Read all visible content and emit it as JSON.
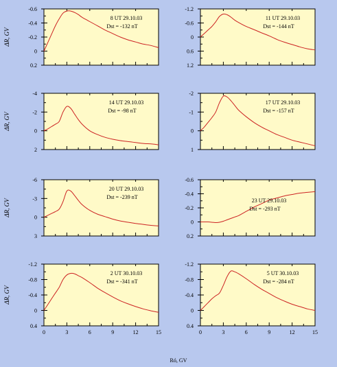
{
  "chart_data": {
    "type": "line",
    "xlabel": "Ró, GV",
    "ylabel": "ΔR, GV",
    "xlim": [
      0,
      15
    ],
    "xticks": [
      0,
      3,
      6,
      9,
      12,
      15
    ],
    "line_color": "#cc2222",
    "panel_bg": "#fffac8",
    "figure_bg": "#b8c8ee",
    "panels": [
      {
        "label": "8 UT 29.10.03",
        "dst": "Dst = -132 nT",
        "ylim": [
          0.2,
          -0.6
        ],
        "yticks": [
          {
            "v": -0.6,
            "t": "-0.6"
          },
          {
            "v": -0.4,
            "t": "-0.4"
          },
          {
            "v": -0.2,
            "t": "-0.2"
          },
          {
            "v": 0,
            "t": "0"
          },
          {
            "v": 0.2,
            "t": "0.2"
          }
        ],
        "x": [
          0,
          0.5,
          1,
          1.5,
          2,
          2.5,
          3,
          3.5,
          4,
          4.5,
          5,
          6,
          7,
          8,
          9,
          10,
          11,
          12,
          13,
          14,
          15
        ],
        "y": [
          0,
          -0.12,
          -0.24,
          -0.36,
          -0.46,
          -0.54,
          -0.57,
          -0.57,
          -0.55,
          -0.52,
          -0.48,
          -0.42,
          -0.36,
          -0.3,
          -0.25,
          -0.2,
          -0.16,
          -0.13,
          -0.1,
          -0.08,
          -0.05
        ]
      },
      {
        "label": "11 UT 29.10.03",
        "dst": "Dst = -144 nT",
        "ylim": [
          1.2,
          -1.2
        ],
        "yticks": [
          {
            "v": -1.2,
            "t": "-1.2"
          },
          {
            "v": -0.6,
            "t": "-0.6"
          },
          {
            "v": 0,
            "t": "0"
          },
          {
            "v": 0.6,
            "t": "0.6"
          },
          {
            "v": 1.2,
            "t": "1.2"
          }
        ],
        "x": [
          0,
          0.5,
          1,
          1.5,
          2,
          2.5,
          3,
          3.5,
          4,
          4.5,
          5,
          6,
          7,
          8,
          9,
          10,
          11,
          12,
          13,
          14,
          15
        ],
        "y": [
          0,
          -0.15,
          -0.3,
          -0.45,
          -0.65,
          -0.88,
          -0.98,
          -0.95,
          -0.85,
          -0.72,
          -0.62,
          -0.45,
          -0.32,
          -0.18,
          -0.05,
          0.1,
          0.22,
          0.32,
          0.42,
          0.5,
          0.55
        ]
      },
      {
        "label": "14 UT 29.10.03",
        "dst": "Dst = -98 nT",
        "ylim": [
          2,
          -4
        ],
        "yticks": [
          {
            "v": -4,
            "t": "-4"
          },
          {
            "v": -2,
            "t": "-2"
          },
          {
            "v": 0,
            "t": "0"
          },
          {
            "v": 2,
            "t": "2"
          }
        ],
        "x": [
          0,
          0.5,
          1,
          1.5,
          2,
          2.5,
          3,
          3.5,
          4,
          4.5,
          5,
          6,
          7,
          8,
          9,
          10,
          11,
          12,
          13,
          14,
          15
        ],
        "y": [
          0,
          -0.2,
          -0.45,
          -0.7,
          -1.0,
          -2.0,
          -2.6,
          -2.4,
          -1.8,
          -1.2,
          -0.7,
          0,
          0.4,
          0.7,
          0.9,
          1.05,
          1.15,
          1.25,
          1.35,
          1.4,
          1.5
        ]
      },
      {
        "label": "17 UT 29.10.03",
        "dst": "Dst = -157 nT",
        "ylim": [
          1,
          -2
        ],
        "yticks": [
          {
            "v": -2,
            "t": "-2"
          },
          {
            "v": -1,
            "t": "-1"
          },
          {
            "v": 0,
            "t": "0"
          },
          {
            "v": 1,
            "t": "1"
          }
        ],
        "x": [
          0,
          0.5,
          1,
          1.5,
          2,
          2.5,
          3,
          3.5,
          4,
          4.5,
          5,
          6,
          7,
          8,
          9,
          10,
          11,
          12,
          13,
          14,
          15
        ],
        "y": [
          0,
          -0.2,
          -0.45,
          -0.7,
          -1.0,
          -1.5,
          -1.85,
          -1.8,
          -1.6,
          -1.35,
          -1.1,
          -0.75,
          -0.45,
          -0.2,
          0,
          0.2,
          0.35,
          0.5,
          0.6,
          0.7,
          0.8
        ]
      },
      {
        "label": "20 UT 29.10.03",
        "dst": "Dst = -239 nT",
        "ylim": [
          3,
          -6
        ],
        "yticks": [
          {
            "v": -6,
            "t": "-6"
          },
          {
            "v": -3,
            "t": "-3"
          },
          {
            "v": 0,
            "t": "0"
          },
          {
            "v": 3,
            "t": "3"
          }
        ],
        "x": [
          0,
          0.5,
          1,
          1.5,
          2,
          2.5,
          3,
          3.5,
          4,
          4.5,
          5,
          6,
          7,
          8,
          9,
          10,
          11,
          12,
          13,
          14,
          15
        ],
        "y": [
          0,
          -0.3,
          -0.6,
          -0.9,
          -1.3,
          -2.5,
          -4.2,
          -4.2,
          -3.5,
          -2.7,
          -2.0,
          -1.1,
          -0.5,
          -0.1,
          0.3,
          0.6,
          0.8,
          1.0,
          1.15,
          1.3,
          1.4
        ]
      },
      {
        "label": "23 UT 29.10.03",
        "dst": "Dst = -293 nT",
        "ylim": [
          0.2,
          -0.6
        ],
        "yticks": [
          {
            "v": -0.6,
            "t": "-0.6"
          },
          {
            "v": -0.4,
            "t": "-0.4"
          },
          {
            "v": -0.2,
            "t": "-0.2"
          },
          {
            "v": 0,
            "t": "0"
          },
          {
            "v": 0.2,
            "t": "0.2"
          }
        ],
        "x": [
          0,
          0.5,
          1,
          1.5,
          2,
          2.5,
          3,
          3.5,
          4,
          4.5,
          5,
          6,
          7,
          8,
          9,
          10,
          11,
          12,
          13,
          14,
          15
        ],
        "y": [
          0,
          0,
          0,
          0.005,
          0.01,
          0.005,
          -0.01,
          -0.03,
          -0.05,
          -0.07,
          -0.09,
          -0.15,
          -0.21,
          -0.26,
          -0.31,
          -0.34,
          -0.37,
          -0.39,
          -0.41,
          -0.42,
          -0.43
        ]
      },
      {
        "label": "2 UT 30.10.03",
        "dst": "Dst = -341 nT",
        "ylim": [
          0.4,
          -1.2
        ],
        "yticks": [
          {
            "v": -1.2,
            "t": "-1.2"
          },
          {
            "v": -0.8,
            "t": "-0.8"
          },
          {
            "v": -0.4,
            "t": "-0.4"
          },
          {
            "v": 0,
            "t": "0"
          },
          {
            "v": 0.4,
            "t": "0.4"
          }
        ],
        "x": [
          0,
          0.5,
          1,
          1.5,
          2,
          2.5,
          3,
          3.5,
          4,
          4.5,
          5,
          6,
          7,
          8,
          9,
          10,
          11,
          12,
          13,
          14,
          15
        ],
        "y": [
          0,
          -0.15,
          -0.3,
          -0.45,
          -0.6,
          -0.8,
          -0.92,
          -0.96,
          -0.95,
          -0.9,
          -0.85,
          -0.72,
          -0.58,
          -0.46,
          -0.35,
          -0.25,
          -0.17,
          -0.1,
          -0.04,
          0.01,
          0.05
        ]
      },
      {
        "label": "5 UT 30.10.03",
        "dst": "Dst = -284 nT",
        "ylim": [
          0.4,
          -1.2
        ],
        "yticks": [
          {
            "v": -1.2,
            "t": "-1.2"
          },
          {
            "v": -0.8,
            "t": "-0.8"
          },
          {
            "v": -0.4,
            "t": "-0.4"
          },
          {
            "v": 0,
            "t": "0"
          },
          {
            "v": 0.4,
            "t": "0.4"
          }
        ],
        "x": [
          0,
          0.5,
          1,
          1.5,
          2,
          2.5,
          3,
          3.5,
          4,
          4.5,
          5,
          6,
          7,
          8,
          9,
          10,
          11,
          12,
          13,
          14,
          15
        ],
        "y": [
          0,
          -0.1,
          -0.2,
          -0.3,
          -0.38,
          -0.45,
          -0.65,
          -0.88,
          -1.02,
          -1.0,
          -0.95,
          -0.82,
          -0.68,
          -0.55,
          -0.44,
          -0.33,
          -0.24,
          -0.16,
          -0.1,
          -0.04,
          0.0
        ]
      }
    ]
  }
}
